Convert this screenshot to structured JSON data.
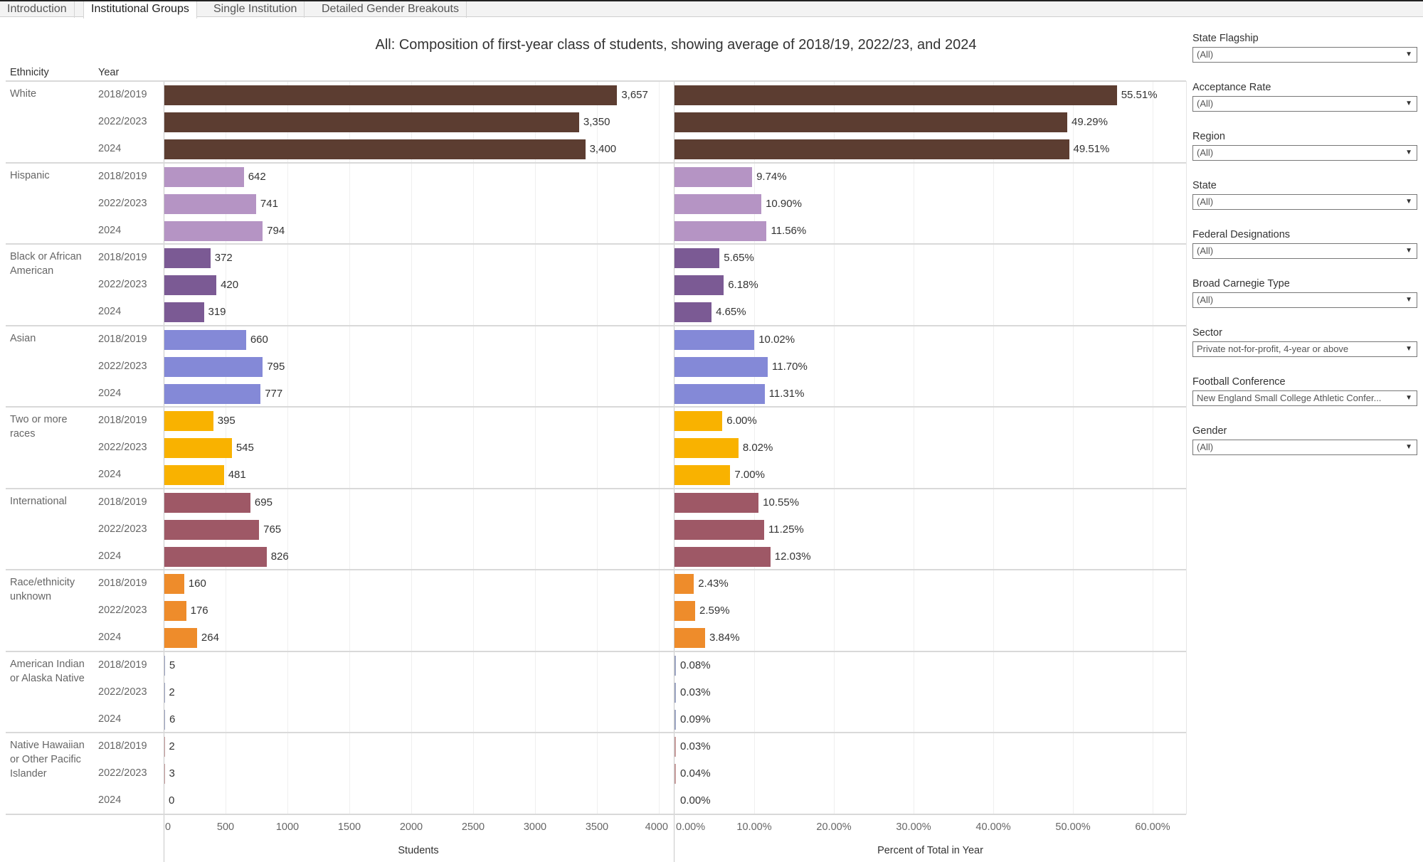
{
  "tabs": [
    {
      "label": "Introduction",
      "active": false
    },
    {
      "label": "Institutional Groups",
      "active": true
    },
    {
      "label": "Single Institution",
      "active": false
    },
    {
      "label": "Detailed Gender Breakouts",
      "active": false
    }
  ],
  "headers": {
    "ethnicity": "Ethnicity",
    "year": "Year"
  },
  "filters": [
    {
      "label": "State Flagship",
      "value": "(All)"
    },
    {
      "label": "Acceptance Rate",
      "value": "(All)"
    },
    {
      "label": "Region",
      "value": "(All)"
    },
    {
      "label": "State",
      "value": "(All)"
    },
    {
      "label": "Federal Designations",
      "value": "(All)"
    },
    {
      "label": "Broad Carnegie Type",
      "value": "(All)"
    },
    {
      "label": "Sector",
      "value": "Private not-for-profit, 4-year or above"
    },
    {
      "label": "Football Conference",
      "value": "New England Small College Athletic Confer..."
    },
    {
      "label": "Gender",
      "value": "(All)"
    }
  ],
  "chart_data": {
    "type": "bar",
    "orientation": "horizontal",
    "title": "All: Composition of first-year class of students, showing average of 2018/19, 2022/23, and 2024",
    "years": [
      "2018/2019",
      "2022/2023",
      "2024"
    ],
    "panels": [
      {
        "name": "students",
        "xlabel": "Students",
        "xlim": [
          0,
          4000
        ],
        "ticks": [
          "0",
          "500",
          "1000",
          "1500",
          "2000",
          "2500",
          "3000",
          "3500",
          "4000"
        ],
        "tick_values": [
          0,
          500,
          1000,
          1500,
          2000,
          2500,
          3000,
          3500,
          4000
        ]
      },
      {
        "name": "percent",
        "xlabel": "Percent of Total in Year",
        "xlim": [
          0,
          60
        ],
        "ticks": [
          "0.00%",
          "10.00%",
          "20.00%",
          "30.00%",
          "40.00%",
          "50.00%",
          "60.00%"
        ],
        "tick_values": [
          0,
          10,
          20,
          30,
          40,
          50,
          60
        ]
      }
    ],
    "groups": [
      {
        "ethnicity": "White",
        "color": "#5c3d31",
        "students": [
          3657,
          3350,
          3400
        ],
        "students_labels": [
          "3,657",
          "3,350",
          "3,400"
        ],
        "percent": [
          55.51,
          49.29,
          49.51
        ],
        "percent_labels": [
          "55.51%",
          "49.29%",
          "49.51%"
        ]
      },
      {
        "ethnicity": "Hispanic",
        "color": "#b594c4",
        "students": [
          642,
          741,
          794
        ],
        "students_labels": [
          "642",
          "741",
          "794"
        ],
        "percent": [
          9.74,
          10.9,
          11.56
        ],
        "percent_labels": [
          "9.74%",
          "10.90%",
          "11.56%"
        ]
      },
      {
        "ethnicity": "Black or African American",
        "color": "#7b5a94",
        "students": [
          372,
          420,
          319
        ],
        "students_labels": [
          "372",
          "420",
          "319"
        ],
        "percent": [
          5.65,
          6.18,
          4.65
        ],
        "percent_labels": [
          "5.65%",
          "6.18%",
          "4.65%"
        ]
      },
      {
        "ethnicity": "Asian",
        "color": "#8489d7",
        "students": [
          660,
          795,
          777
        ],
        "students_labels": [
          "660",
          "795",
          "777"
        ],
        "percent": [
          10.02,
          11.7,
          11.31
        ],
        "percent_labels": [
          "10.02%",
          "11.70%",
          "11.31%"
        ]
      },
      {
        "ethnicity": "Two or more races",
        "color": "#f9b200",
        "students": [
          395,
          545,
          481
        ],
        "students_labels": [
          "395",
          "545",
          "481"
        ],
        "percent": [
          6.0,
          8.02,
          7.0
        ],
        "percent_labels": [
          "6.00%",
          "8.02%",
          "7.00%"
        ]
      },
      {
        "ethnicity": "International",
        "color": "#9e5866",
        "students": [
          695,
          765,
          826
        ],
        "students_labels": [
          "695",
          "765",
          "826"
        ],
        "percent": [
          10.55,
          11.25,
          12.03
        ],
        "percent_labels": [
          "10.55%",
          "11.25%",
          "12.03%"
        ]
      },
      {
        "ethnicity": "Race/ethnicity unknown",
        "color": "#ee8c2b",
        "students": [
          160,
          176,
          264
        ],
        "students_labels": [
          "160",
          "176",
          "264"
        ],
        "percent": [
          2.43,
          2.59,
          3.84
        ],
        "percent_labels": [
          "2.43%",
          "2.59%",
          "3.84%"
        ]
      },
      {
        "ethnicity": "American Indian or Alaska Native",
        "color": "#9fa7c4",
        "students": [
          5,
          2,
          6
        ],
        "students_labels": [
          "5",
          "2",
          "6"
        ],
        "percent": [
          0.08,
          0.03,
          0.09
        ],
        "percent_labels": [
          "0.08%",
          "0.03%",
          "0.09%"
        ]
      },
      {
        "ethnicity": "Native Hawaiian or Other Pacific Islander",
        "color": "#c9a0a0",
        "students": [
          2,
          3,
          0
        ],
        "students_labels": [
          "2",
          "3",
          "0"
        ],
        "percent": [
          0.03,
          0.04,
          0.0
        ],
        "percent_labels": [
          "0.03%",
          "0.04%",
          "0.00%"
        ]
      }
    ]
  }
}
